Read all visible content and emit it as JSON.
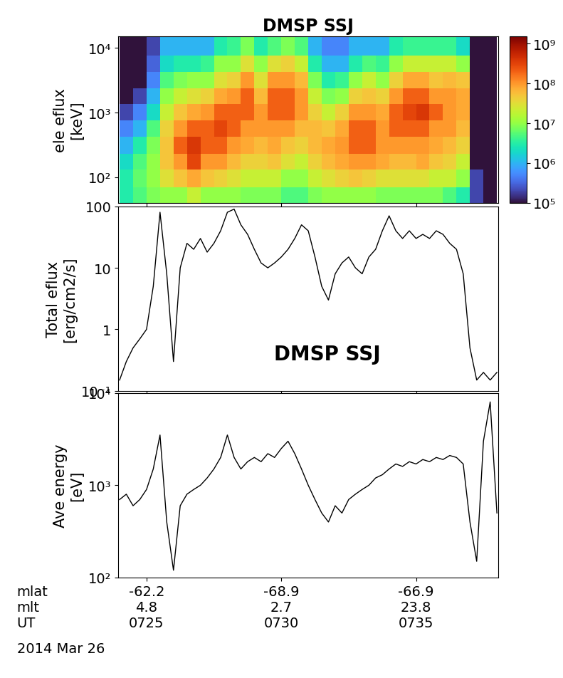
{
  "chart_data": [
    {
      "type": "heatmap",
      "title": "DMSP SSJ",
      "y_label": "ele eflux\n[keV]",
      "log": "y",
      "tick_labels": "y",
      "xlim": [
        23.95,
        38.05
      ],
      "xticks": [
        {
          "value": 25,
          "label": "-62.2\n4.8\n0725"
        },
        {
          "value": 30,
          "label": "-68.9\n2.7\n0730"
        },
        {
          "value": 35,
          "label": "-66.9\n23.8\n0735"
        }
      ],
      "ylim": [
        40,
        15000
      ],
      "yticks": [
        {
          "value": 100,
          "label": "10²"
        },
        {
          "value": 1000,
          "label": "10³"
        },
        {
          "value": 10000,
          "label": "10⁴"
        }
      ],
      "x_edges": [
        24.0,
        24.5,
        25.0,
        25.5,
        26.0,
        26.5,
        27.0,
        27.5,
        28.0,
        28.5,
        29.0,
        29.5,
        30.0,
        30.5,
        31.0,
        31.5,
        32.0,
        32.5,
        33.0,
        33.5,
        34.0,
        34.5,
        35.0,
        35.5,
        36.0,
        36.5,
        37.0,
        37.5,
        38.0
      ],
      "y_edges": [
        40,
        70,
        130,
        230,
        420,
        750,
        1350,
        2400,
        4300,
        7700,
        15000
      ],
      "cells": [
        [
          3000000.0,
          3000000.0,
          2000000.0,
          1000000.0,
          500000.0,
          200000.0,
          100000.0,
          100000.0,
          100000.0,
          100000.0
        ],
        [
          5000000.0,
          6000000.0,
          5000000.0,
          3000000.0,
          1000000.0,
          500000.0,
          200000.0,
          100000.0,
          100000.0,
          100000.0
        ],
        [
          8000000.0,
          10000000.0,
          10000000.0,
          8000000.0,
          5000000.0,
          2000000.0,
          1000000.0,
          500000.0,
          300000.0,
          200000.0
        ],
        [
          10000000.0,
          30000000.0,
          50000000.0,
          50000000.0,
          40000000.0,
          20000000.0,
          10000000.0,
          5000000.0,
          2000000.0,
          1000000.0
        ],
        [
          10000000.0,
          50000000.0,
          100000000.0,
          200000000.0,
          100000000.0,
          50000000.0,
          20000000.0,
          8000000.0,
          3000000.0,
          1000000.0
        ],
        [
          20000000.0,
          80000000.0,
          300000000.0,
          400000000.0,
          200000000.0,
          80000000.0,
          30000000.0,
          10000000.0,
          3000000.0,
          1000000.0
        ],
        [
          10000000.0,
          50000000.0,
          100000000.0,
          200000000.0,
          200000000.0,
          100000000.0,
          40000000.0,
          10000000.0,
          4000000.0,
          1000000.0
        ],
        [
          10000000.0,
          40000000.0,
          100000000.0,
          200000000.0,
          300000000.0,
          200000000.0,
          80000000.0,
          30000000.0,
          10000000.0,
          3000000.0
        ],
        [
          10000000.0,
          30000000.0,
          60000000.0,
          100000000.0,
          200000000.0,
          200000000.0,
          100000000.0,
          40000000.0,
          10000000.0,
          4000000.0
        ],
        [
          8000000.0,
          20000000.0,
          40000000.0,
          80000000.0,
          100000000.0,
          200000000.0,
          200000000.0,
          100000000.0,
          30000000.0,
          8000000.0
        ],
        [
          8000000.0,
          20000000.0,
          40000000.0,
          60000000.0,
          100000000.0,
          100000000.0,
          60000000.0,
          30000000.0,
          10000000.0,
          3000000.0
        ],
        [
          8000000.0,
          20000000.0,
          50000000.0,
          80000000.0,
          100000000.0,
          200000000.0,
          200000000.0,
          100000000.0,
          30000000.0,
          5000000.0
        ],
        [
          5000000.0,
          10000000.0,
          30000000.0,
          50000000.0,
          100000000.0,
          200000000.0,
          200000000.0,
          100000000.0,
          40000000.0,
          8000000.0
        ],
        [
          5000000.0,
          10000000.0,
          20000000.0,
          40000000.0,
          60000000.0,
          100000000.0,
          100000000.0,
          60000000.0,
          20000000.0,
          5000000.0
        ],
        [
          8000000.0,
          20000000.0,
          40000000.0,
          60000000.0,
          60000000.0,
          40000000.0,
          20000000.0,
          8000000.0,
          3000000.0,
          1000000.0
        ],
        [
          10000000.0,
          30000000.0,
          60000000.0,
          80000000.0,
          50000000.0,
          20000000.0,
          8000000.0,
          3000000.0,
          1000000.0,
          500000.0
        ],
        [
          10000000.0,
          40000000.0,
          80000000.0,
          100000000.0,
          80000000.0,
          40000000.0,
          10000000.0,
          4000000.0,
          1000000.0,
          500000.0
        ],
        [
          10000000.0,
          50000000.0,
          100000000.0,
          200000000.0,
          200000000.0,
          100000000.0,
          40000000.0,
          10000000.0,
          3000000.0,
          1000000.0
        ],
        [
          10000000.0,
          40000000.0,
          100000000.0,
          200000000.0,
          200000000.0,
          100000000.0,
          50000000.0,
          20000000.0,
          5000000.0,
          1000000.0
        ],
        [
          8000000.0,
          30000000.0,
          80000000.0,
          100000000.0,
          100000000.0,
          80000000.0,
          40000000.0,
          10000000.0,
          4000000.0,
          1000000.0
        ],
        [
          8000000.0,
          30000000.0,
          60000000.0,
          100000000.0,
          200000000.0,
          200000000.0,
          100000000.0,
          40000000.0,
          10000000.0,
          3000000.0
        ],
        [
          8000000.0,
          30000000.0,
          60000000.0,
          100000000.0,
          200000000.0,
          300000000.0,
          200000000.0,
          80000000.0,
          20000000.0,
          4000000.0
        ],
        [
          8000000.0,
          30000000.0,
          80000000.0,
          100000000.0,
          200000000.0,
          400000000.0,
          200000000.0,
          80000000.0,
          20000000.0,
          4000000.0
        ],
        [
          8000000.0,
          20000000.0,
          50000000.0,
          80000000.0,
          100000000.0,
          200000000.0,
          100000000.0,
          50000000.0,
          20000000.0,
          4000000.0
        ],
        [
          5000000.0,
          20000000.0,
          40000000.0,
          60000000.0,
          100000000.0,
          100000000.0,
          100000000.0,
          60000000.0,
          20000000.0,
          4000000.0
        ],
        [
          3000000.0,
          10000000.0,
          20000000.0,
          40000000.0,
          60000000.0,
          80000000.0,
          80000000.0,
          50000000.0,
          10000000.0,
          2000000.0
        ],
        [
          200000.0,
          200000.0,
          100000.0,
          100000.0,
          100000.0,
          100000.0,
          100000.0,
          100000.0,
          100000.0,
          100000.0
        ],
        [
          100000.0,
          100000.0,
          100000.0,
          100000.0,
          100000.0,
          100000.0,
          100000.0,
          100000.0,
          100000.0,
          100000.0
        ]
      ],
      "colorbar": {
        "range": [
          100000,
          1500000000
        ],
        "ticks": [
          {
            "value": 100000,
            "label": "10⁵"
          },
          {
            "value": 1000000,
            "label": "10⁶"
          },
          {
            "value": 10000000,
            "label": "10⁷"
          },
          {
            "value": 100000000,
            "label": "10⁸"
          },
          {
            "value": 1000000000,
            "label": "10⁹"
          }
        ]
      }
    },
    {
      "type": "line",
      "y_label": "Total eflux\n[erg/cm2/s]",
      "annotation": "DMSP SSJ",
      "log": "y",
      "tick_labels": "y",
      "xlim": [
        23.95,
        38.05
      ],
      "xticks": [
        {
          "value": 25,
          "label": "-62.2\n4.8\n0725"
        },
        {
          "value": 30,
          "label": "-68.9\n2.7\n0730"
        },
        {
          "value": 35,
          "label": "-66.9\n23.8\n0735"
        }
      ],
      "ylim": [
        0.1,
        100
      ],
      "yticks": [
        {
          "value": 0.1,
          "label": "10⁻¹"
        },
        1,
        10,
        100
      ],
      "x": [
        24.0,
        24.25,
        24.5,
        24.75,
        25.0,
        25.25,
        25.5,
        25.75,
        26.0,
        26.25,
        26.5,
        26.75,
        27.0,
        27.25,
        27.5,
        27.75,
        28.0,
        28.25,
        28.5,
        28.75,
        29.0,
        29.25,
        29.5,
        29.75,
        30.0,
        30.25,
        30.5,
        30.75,
        31.0,
        31.25,
        31.5,
        31.75,
        32.0,
        32.25,
        32.5,
        32.75,
        33.0,
        33.25,
        33.5,
        33.75,
        34.0,
        34.25,
        34.5,
        34.75,
        35.0,
        35.25,
        35.5,
        35.75,
        36.0,
        36.25,
        36.5,
        36.75,
        37.0,
        37.25,
        37.5,
        37.75,
        38.0
      ],
      "color": "#000000",
      "values": [
        0.15,
        0.3,
        0.5,
        0.7,
        1.0,
        5,
        80,
        8,
        0.3,
        10,
        25,
        20,
        30,
        18,
        25,
        40,
        80,
        90,
        50,
        35,
        20,
        12,
        10,
        12,
        15,
        20,
        30,
        50,
        40,
        15,
        5,
        3,
        8,
        12,
        15,
        10,
        8,
        15,
        20,
        40,
        70,
        40,
        30,
        40,
        30,
        35,
        30,
        40,
        35,
        25,
        20,
        8,
        0.5,
        0.15,
        0.2,
        0.15,
        0.2
      ]
    },
    {
      "type": "line",
      "y_label": "Ave energy\n[eV]",
      "log": "y",
      "tick_labels": true,
      "x_label_rows": "mlat\nmlt\nUT",
      "date": "2014 Mar 26",
      "xlim": [
        23.95,
        38.05
      ],
      "xticks": [
        {
          "value": 25,
          "label": "-62.2\n4.8\n0725"
        },
        {
          "value": 30,
          "label": "-68.9\n2.7\n0730"
        },
        {
          "value": 35,
          "label": "-66.9\n23.8\n0735"
        }
      ],
      "ylim": [
        100,
        10000
      ],
      "yticks": [
        {
          "value": 100,
          "label": "10²"
        },
        {
          "value": 1000,
          "label": "10³"
        },
        {
          "value": 10000,
          "label": "10⁴"
        }
      ],
      "x": [
        24.0,
        24.25,
        24.5,
        24.75,
        25.0,
        25.25,
        25.5,
        25.75,
        26.0,
        26.25,
        26.5,
        26.75,
        27.0,
        27.25,
        27.5,
        27.75,
        28.0,
        28.25,
        28.5,
        28.75,
        29.0,
        29.25,
        29.5,
        29.75,
        30.0,
        30.25,
        30.5,
        30.75,
        31.0,
        31.25,
        31.5,
        31.75,
        32.0,
        32.25,
        32.5,
        32.75,
        33.0,
        33.25,
        33.5,
        33.75,
        34.0,
        34.25,
        34.5,
        34.75,
        35.0,
        35.25,
        35.5,
        35.75,
        36.0,
        36.25,
        36.5,
        36.75,
        37.0,
        37.25,
        37.5,
        37.75,
        38.0
      ],
      "color": "#000000",
      "values": [
        700,
        800,
        600,
        700,
        900,
        1500,
        3500,
        400,
        120,
        600,
        800,
        900,
        1000,
        1200,
        1500,
        2000,
        3500,
        2000,
        1500,
        1800,
        2000,
        1800,
        2200,
        2000,
        2500,
        3000,
        2200,
        1500,
        1000,
        700,
        500,
        400,
        600,
        500,
        700,
        800,
        900,
        1000,
        1200,
        1300,
        1500,
        1700,
        1600,
        1800,
        1700,
        1900,
        1800,
        2000,
        1900,
        2100,
        2000,
        1700,
        400,
        150,
        3000,
        8000,
        500
      ]
    }
  ]
}
